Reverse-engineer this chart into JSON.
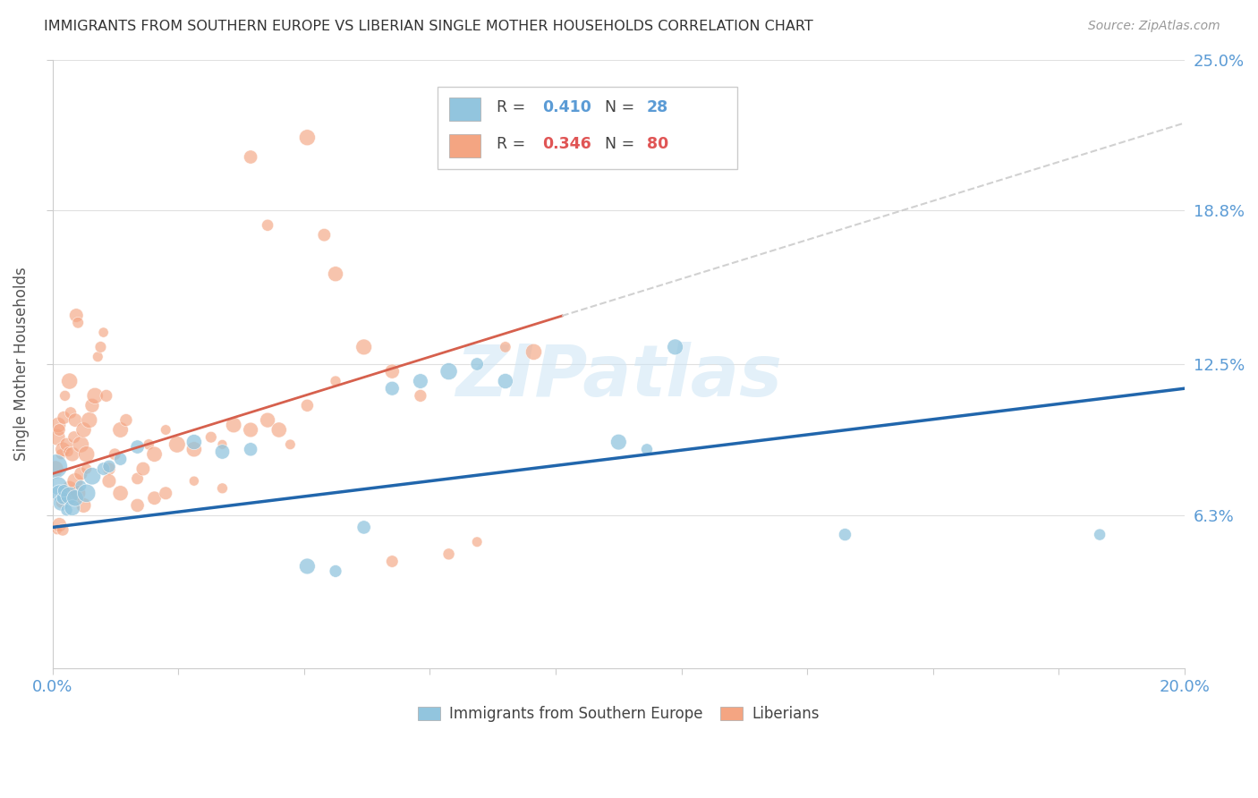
{
  "title": "IMMIGRANTS FROM SOUTHERN EUROPE VS LIBERIAN SINGLE MOTHER HOUSEHOLDS CORRELATION CHART",
  "source": "Source: ZipAtlas.com",
  "ylabel": "Single Mother Households",
  "ytick_labels": [
    "6.3%",
    "12.5%",
    "18.8%",
    "25.0%"
  ],
  "ytick_values": [
    6.3,
    12.5,
    18.8,
    25.0
  ],
  "xlim": [
    0.0,
    20.0
  ],
  "ylim": [
    0.0,
    25.0
  ],
  "blue_color": "#92c5de",
  "pink_color": "#f4a582",
  "blue_line_color": "#2166ac",
  "pink_line_color": "#e8a0a0",
  "pink_solid_color": "#d6604d",
  "background_color": "#ffffff",
  "grid_color": "#e0e0e0",
  "watermark": "ZIPatlas",
  "blue_line_intercept": 5.8,
  "blue_line_slope": 0.285,
  "pink_line_intercept": 8.0,
  "pink_line_slope": 0.72,
  "pink_solid_end": 9.0,
  "blue_scatter": [
    [
      0.05,
      8.3
    ],
    [
      0.1,
      7.5
    ],
    [
      0.12,
      7.2
    ],
    [
      0.15,
      6.8
    ],
    [
      0.18,
      7.0
    ],
    [
      0.2,
      7.3
    ],
    [
      0.25,
      6.5
    ],
    [
      0.3,
      7.1
    ],
    [
      0.35,
      6.6
    ],
    [
      0.4,
      7.0
    ],
    [
      0.5,
      7.5
    ],
    [
      0.6,
      7.2
    ],
    [
      0.7,
      7.9
    ],
    [
      0.9,
      8.2
    ],
    [
      1.0,
      8.3
    ],
    [
      1.2,
      8.6
    ],
    [
      1.5,
      9.1
    ],
    [
      2.5,
      9.3
    ],
    [
      3.0,
      8.9
    ],
    [
      3.5,
      9.0
    ],
    [
      4.5,
      4.2
    ],
    [
      5.0,
      4.0
    ],
    [
      5.5,
      5.8
    ],
    [
      6.0,
      11.5
    ],
    [
      6.5,
      11.8
    ],
    [
      7.0,
      12.2
    ],
    [
      7.5,
      12.5
    ],
    [
      8.0,
      11.8
    ],
    [
      10.0,
      9.3
    ],
    [
      10.5,
      9.0
    ],
    [
      11.0,
      13.2
    ],
    [
      14.0,
      5.5
    ],
    [
      18.5,
      5.5
    ]
  ],
  "pink_scatter": [
    [
      0.05,
      8.2
    ],
    [
      0.08,
      9.5
    ],
    [
      0.1,
      10.0
    ],
    [
      0.12,
      9.8
    ],
    [
      0.15,
      8.8
    ],
    [
      0.18,
      9.0
    ],
    [
      0.2,
      10.3
    ],
    [
      0.22,
      11.2
    ],
    [
      0.25,
      9.2
    ],
    [
      0.28,
      8.9
    ],
    [
      0.3,
      11.8
    ],
    [
      0.32,
      10.5
    ],
    [
      0.35,
      8.8
    ],
    [
      0.38,
      9.5
    ],
    [
      0.4,
      10.2
    ],
    [
      0.42,
      14.5
    ],
    [
      0.45,
      14.2
    ],
    [
      0.5,
      9.2
    ],
    [
      0.55,
      9.8
    ],
    [
      0.6,
      8.8
    ],
    [
      0.65,
      10.2
    ],
    [
      0.7,
      10.8
    ],
    [
      0.75,
      11.2
    ],
    [
      0.8,
      12.8
    ],
    [
      0.85,
      13.2
    ],
    [
      0.9,
      13.8
    ],
    [
      0.95,
      11.2
    ],
    [
      1.0,
      8.2
    ],
    [
      1.1,
      8.8
    ],
    [
      1.2,
      9.8
    ],
    [
      1.3,
      10.2
    ],
    [
      1.5,
      7.8
    ],
    [
      1.6,
      8.2
    ],
    [
      1.7,
      9.2
    ],
    [
      1.8,
      8.8
    ],
    [
      2.0,
      9.8
    ],
    [
      2.2,
      9.2
    ],
    [
      2.5,
      9.0
    ],
    [
      2.8,
      9.5
    ],
    [
      3.0,
      9.2
    ],
    [
      3.2,
      10.0
    ],
    [
      3.5,
      9.8
    ],
    [
      3.8,
      10.2
    ],
    [
      4.0,
      9.8
    ],
    [
      4.2,
      9.2
    ],
    [
      4.5,
      10.8
    ],
    [
      5.0,
      11.8
    ],
    [
      5.5,
      13.2
    ],
    [
      6.0,
      12.2
    ],
    [
      6.5,
      11.2
    ],
    [
      0.15,
      6.8
    ],
    [
      0.2,
      7.0
    ],
    [
      0.25,
      7.2
    ],
    [
      0.3,
      7.4
    ],
    [
      0.35,
      7.0
    ],
    [
      0.4,
      7.7
    ],
    [
      0.5,
      8.0
    ],
    [
      0.6,
      8.2
    ],
    [
      0.55,
      6.7
    ],
    [
      0.45,
      7.2
    ],
    [
      1.0,
      7.7
    ],
    [
      1.2,
      7.2
    ],
    [
      1.5,
      6.7
    ],
    [
      1.8,
      7.0
    ],
    [
      2.0,
      7.2
    ],
    [
      2.5,
      7.7
    ],
    [
      3.0,
      7.4
    ],
    [
      0.08,
      5.7
    ],
    [
      0.12,
      5.9
    ],
    [
      0.18,
      5.7
    ],
    [
      3.5,
      21.0
    ],
    [
      4.5,
      21.8
    ],
    [
      3.8,
      18.2
    ],
    [
      4.8,
      17.8
    ],
    [
      5.0,
      16.2
    ],
    [
      7.0,
      4.7
    ],
    [
      7.5,
      5.2
    ],
    [
      6.0,
      4.4
    ],
    [
      8.0,
      13.2
    ],
    [
      8.5,
      13.0
    ]
  ]
}
